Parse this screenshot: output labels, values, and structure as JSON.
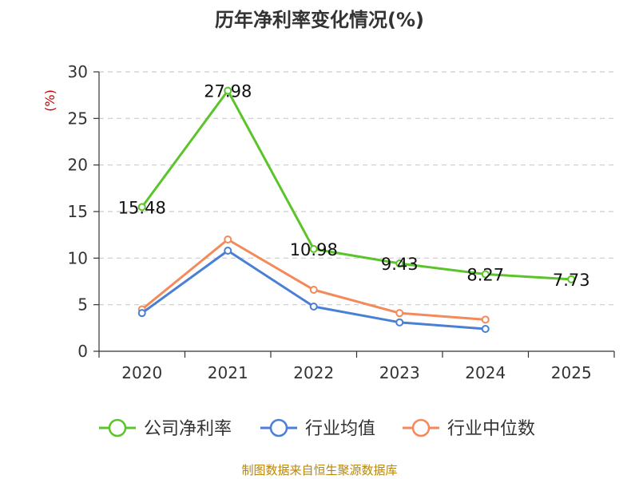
{
  "chart_data": {
    "type": "line",
    "title": "历年净利率变化情况(%)",
    "ylabel": "(%)",
    "xlabel": "",
    "categories": [
      "2020",
      "2021",
      "2022",
      "2023",
      "2024",
      "2025"
    ],
    "ylim": [
      0,
      30
    ],
    "yticks": [
      0,
      5,
      10,
      15,
      20,
      25,
      30
    ],
    "grid": true,
    "legend_position": "bottom",
    "series": [
      {
        "name": "公司净利率",
        "color": "#5cc42b",
        "values": [
          15.48,
          27.98,
          10.98,
          9.43,
          8.27,
          7.73
        ],
        "labels": [
          "15.48",
          "27.98",
          "10.98",
          "9.43",
          "8.27",
          "7.73"
        ]
      },
      {
        "name": "行业均值",
        "color": "#4a7fd6",
        "values": [
          4.1,
          10.8,
          4.8,
          3.1,
          2.4,
          null
        ]
      },
      {
        "name": "行业中位数",
        "color": "#f4895a",
        "values": [
          4.5,
          12.0,
          6.6,
          4.1,
          3.4,
          null
        ]
      }
    ],
    "source": "制图数据来自恒生聚源数据库"
  }
}
